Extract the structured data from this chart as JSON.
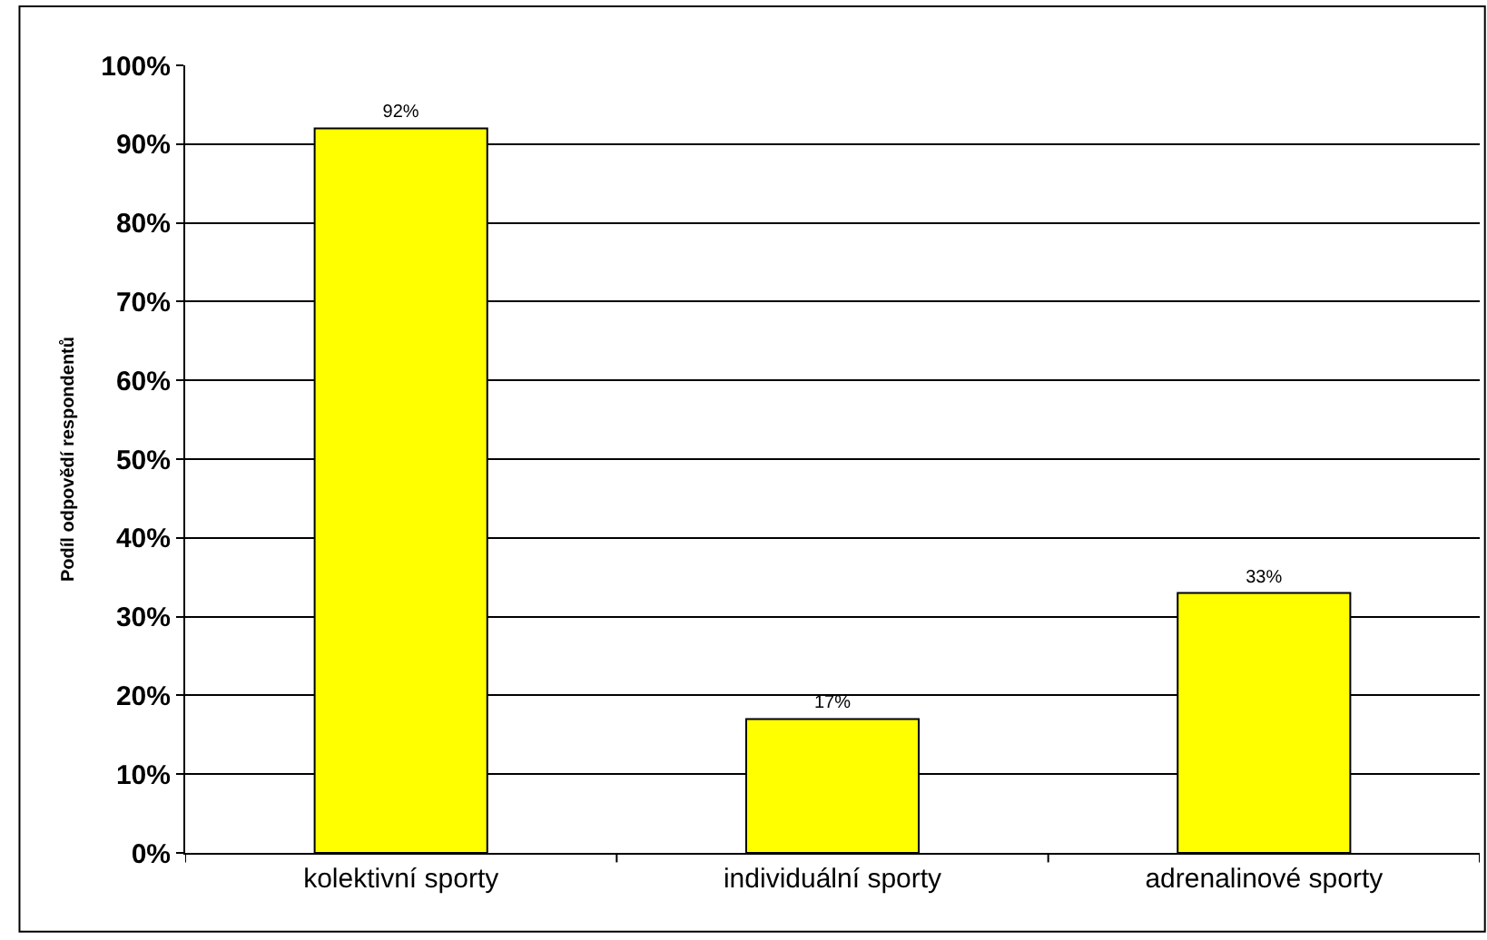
{
  "chart_data": {
    "type": "bar",
    "ylabel": "Podíl odpovědí respondentů",
    "categories": [
      "kolektivní sporty",
      "individuální sporty",
      "adrenalinové sporty"
    ],
    "values": [
      92,
      17,
      33
    ],
    "value_labels": [
      "92%",
      "17%",
      "33%"
    ],
    "color": "#ffff00",
    "ylim": [
      0,
      100
    ],
    "yticks": [
      {
        "value": 0,
        "label": "0%"
      },
      {
        "value": 10,
        "label": "10%"
      },
      {
        "value": 20,
        "label": "20%"
      },
      {
        "value": 30,
        "label": "30%"
      },
      {
        "value": 40,
        "label": "40%"
      },
      {
        "value": 50,
        "label": "50%"
      },
      {
        "value": 60,
        "label": "60%"
      },
      {
        "value": 70,
        "label": "70%"
      },
      {
        "value": 80,
        "label": "80%"
      },
      {
        "value": 90,
        "label": "90%"
      },
      {
        "value": 100,
        "label": "100%"
      }
    ],
    "grid": "y",
    "legend": false
  }
}
